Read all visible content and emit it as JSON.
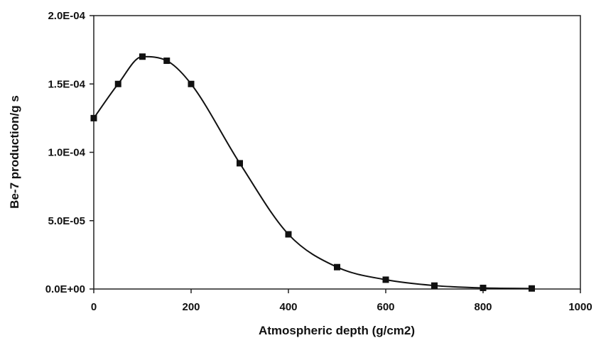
{
  "chart_data": {
    "type": "scatter",
    "title": "",
    "xlabel": "Atmospheric depth (g/cm2)",
    "ylabel": "Be-7 production/g s",
    "xlim": [
      0,
      1000
    ],
    "ylim": [
      0,
      0.0002
    ],
    "x_ticks": [
      0,
      200,
      400,
      600,
      800,
      1000
    ],
    "x_tick_labels": [
      "0",
      "200",
      "400",
      "600",
      "800",
      "1000"
    ],
    "y_ticks": [
      0,
      5e-05,
      0.0001,
      0.00015,
      0.0002
    ],
    "y_tick_labels": [
      "0.0E+00",
      "5.0E-05",
      "1.0E-04",
      "1.5E-04",
      "2.0E-04"
    ],
    "grid": false,
    "legend": "none",
    "marker_color": "#111111",
    "line_color": "#111111",
    "series": [
      {
        "x": [
          0,
          50,
          100,
          150,
          200,
          300,
          400,
          500,
          600,
          700,
          800,
          900
        ],
        "y": [
          0.000125,
          0.00015,
          0.00017,
          0.000167,
          0.00015,
          9.2e-05,
          4e-05,
          1.6e-05,
          6.8e-06,
          2.5e-06,
          8e-07,
          4e-07
        ],
        "markers": true,
        "smooth_line": true
      }
    ]
  }
}
